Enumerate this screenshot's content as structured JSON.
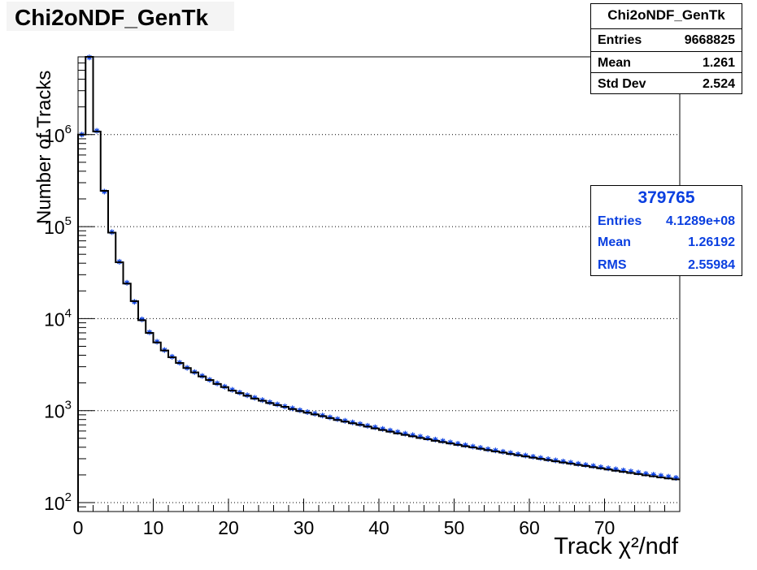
{
  "title": "Chi2oNDF_GenTk",
  "stats_main": {
    "name": "Chi2oNDF_GenTk",
    "rows": [
      {
        "label": "Entries",
        "value": "9668825"
      },
      {
        "label": "Mean",
        "value": "1.261"
      },
      {
        "label": "Std Dev",
        "value": "2.524"
      }
    ]
  },
  "stats_ref": {
    "name": "379765",
    "rows": [
      {
        "label": "Entries",
        "value": "4.1289e+08"
      },
      {
        "label": "Mean",
        "value": "1.26192"
      },
      {
        "label": "RMS",
        "value": "2.55984"
      }
    ]
  },
  "colors": {
    "main": "#000000",
    "reference": "#0a3fe0",
    "grid": "#000000"
  },
  "chart_data": {
    "type": "line",
    "title": "Chi2oNDF_GenTk",
    "xlabel": "Track χ²/ndf",
    "ylabel": "Number of Tracks",
    "xlim": [
      0,
      80
    ],
    "ylim": [
      80,
      7000000
    ],
    "log_y": true,
    "grid": "horizontal dotted",
    "x_tick_labels": [
      "0",
      "10",
      "20",
      "30",
      "40",
      "50",
      "60",
      "70"
    ],
    "y_tick_labels": [
      {
        "base": "10",
        "exp": "2"
      },
      {
        "base": "10",
        "exp": "3"
      },
      {
        "base": "10",
        "exp": "4"
      },
      {
        "base": "10",
        "exp": "5"
      },
      {
        "base": "10",
        "exp": "6"
      }
    ],
    "bin_width": 1,
    "series": [
      {
        "style": "step",
        "color": "#000000",
        "values": [
          1000000,
          7000000,
          1080000,
          245000,
          86000,
          41000,
          24000,
          15500,
          9600,
          7000,
          5500,
          4500,
          3800,
          3300,
          2900,
          2600,
          2350,
          2150,
          1950,
          1800,
          1650,
          1550,
          1450,
          1350,
          1280,
          1210,
          1150,
          1100,
          1040,
          990,
          950,
          910,
          870,
          830,
          790,
          760,
          730,
          700,
          670,
          640,
          615,
          590,
          565,
          545,
          525,
          505,
          488,
          470,
          455,
          440,
          425,
          410,
          398,
          385,
          372,
          360,
          350,
          338,
          328,
          318,
          308,
          299,
          290,
          281,
          273,
          265,
          257,
          250,
          243,
          236,
          229,
          222,
          216,
          210,
          204,
          198,
          193,
          188,
          183,
          179
        ]
      },
      {
        "style": "markers",
        "color": "#0a3fe0",
        "values": [
          1000000,
          6900000,
          1100000,
          240000,
          87000,
          41500,
          24500,
          15200,
          9800,
          7100,
          5600,
          4550,
          3850,
          3320,
          2920,
          2620,
          2380,
          2160,
          1980,
          1820,
          1680,
          1570,
          1470,
          1380,
          1300,
          1230,
          1170,
          1110,
          1060,
          1010,
          965,
          925,
          885,
          845,
          810,
          775,
          745,
          715,
          685,
          658,
          632,
          607,
          584,
          562,
          541,
          521,
          502,
          484,
          467,
          451,
          436,
          421,
          407,
          394,
          381,
          369,
          357,
          346,
          335,
          325,
          315,
          306,
          297,
          288,
          280,
          272,
          264,
          257,
          250,
          243,
          236,
          230,
          224,
          218,
          212,
          206,
          201,
          196,
          191,
          186
        ]
      }
    ]
  }
}
